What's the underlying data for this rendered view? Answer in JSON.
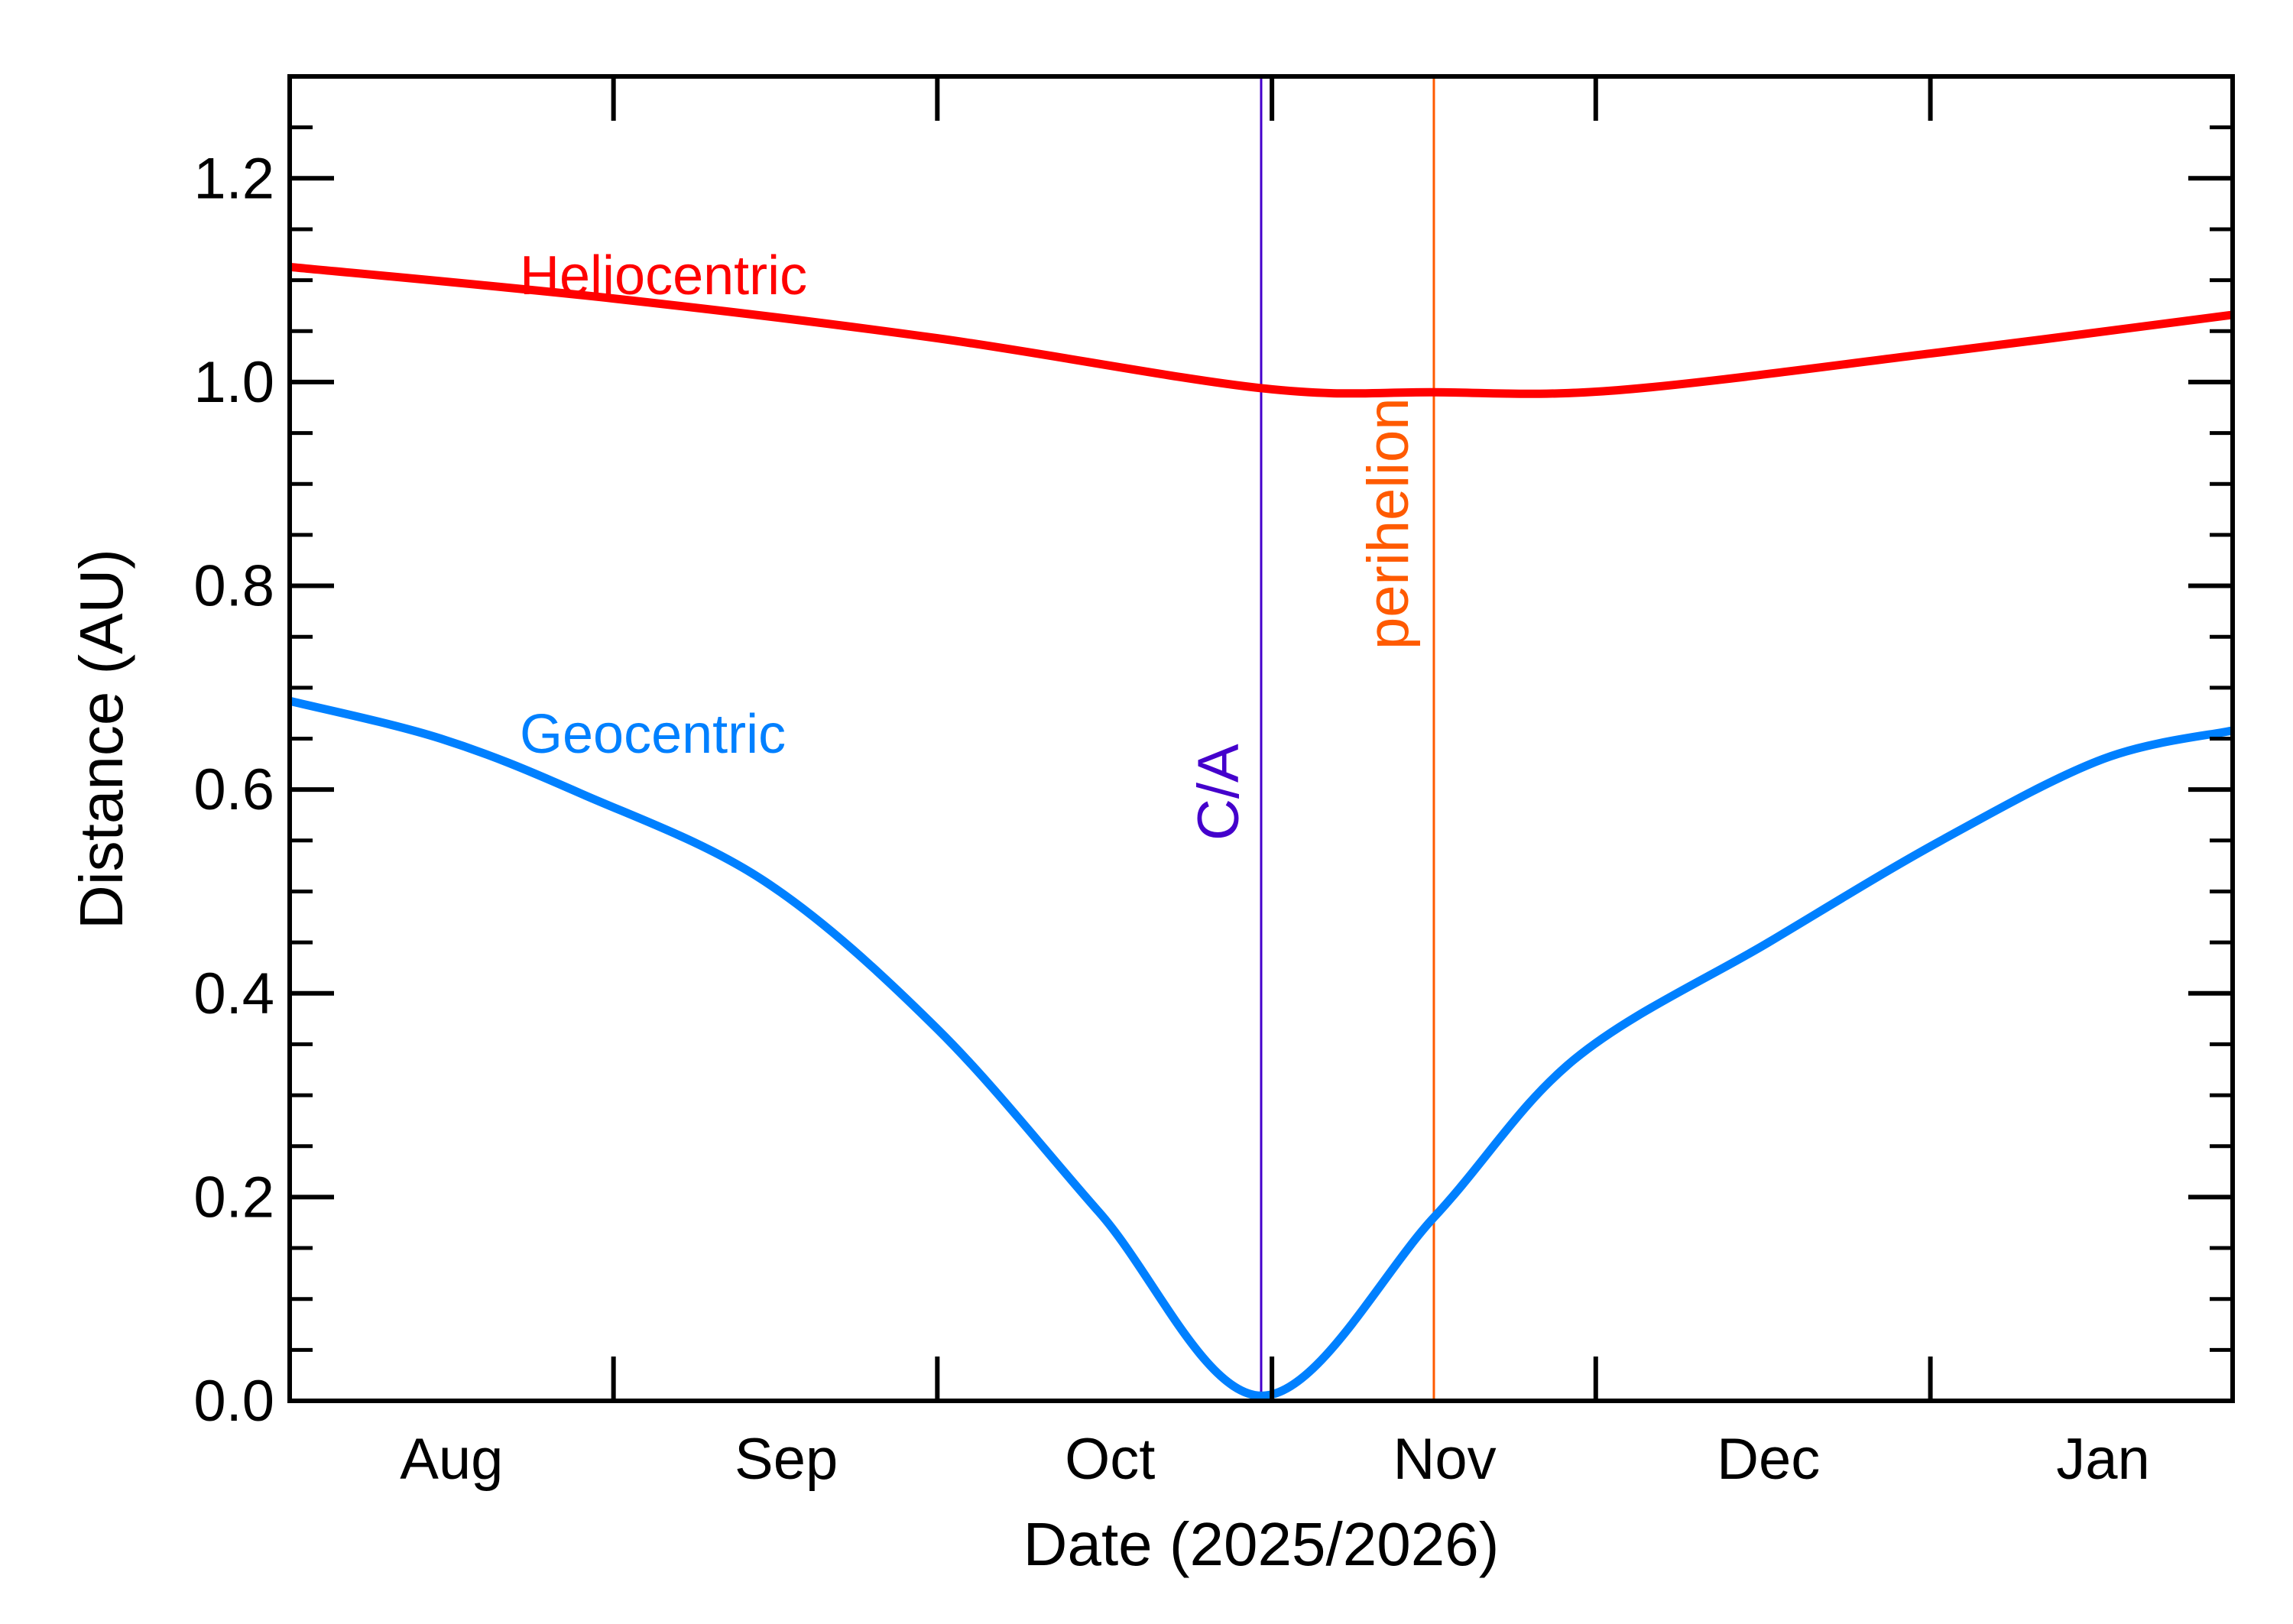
{
  "chart_data": {
    "type": "line",
    "title": "",
    "xlabel": "Date (2025/2026)",
    "ylabel": "Distance (AU)",
    "xlim": [
      "2025-07-17",
      "2026-01-13"
    ],
    "ylim": [
      0,
      1.3
    ],
    "grid": false,
    "x_tick_labels": [
      {
        "label": "Aug",
        "date": "2025-08-01"
      },
      {
        "label": "Sep",
        "date": "2025-09-01"
      },
      {
        "label": "Oct",
        "date": "2025-10-01"
      },
      {
        "label": "Nov",
        "date": "2025-11-01"
      },
      {
        "label": "Dec",
        "date": "2025-12-01"
      },
      {
        "label": "Jan",
        "date": "2026-01-01"
      }
    ],
    "x_major_ticks": [
      "2025-08-16",
      "2025-09-15",
      "2025-10-16",
      "2025-11-15",
      "2025-12-16"
    ],
    "y_ticks": [
      0.0,
      0.2,
      0.4,
      0.6,
      0.8,
      1.0,
      1.2
    ],
    "y_tick_labels": [
      "0.0",
      "0.2",
      "0.4",
      "0.6",
      "0.8",
      "1.0",
      "1.2"
    ],
    "y_minor_step": 0.05,
    "series": [
      {
        "name": "Heliocentric",
        "color": "#ff0000",
        "x": [
          "2025-07-17",
          "2025-08-16",
          "2025-09-15",
          "2025-10-15",
          "2025-10-31",
          "2025-11-17",
          "2025-12-16",
          "2026-01-13"
        ],
        "y": [
          1.113,
          1.082,
          1.043,
          0.994,
          0.99,
          0.992,
          1.028,
          1.066
        ]
      },
      {
        "name": "Geocentric",
        "color": "#0080ff",
        "x": [
          "2025-07-17",
          "2025-07-31",
          "2025-08-13",
          "2025-08-30",
          "2025-09-15",
          "2025-09-30",
          "2025-10-15",
          "2025-10-31",
          "2025-11-13",
          "2025-12-01",
          "2025-12-17",
          "2026-01-01",
          "2026-01-13"
        ],
        "y": [
          0.687,
          0.65,
          0.596,
          0.51,
          0.365,
          0.185,
          0.005,
          0.18,
          0.335,
          0.45,
          0.55,
          0.63,
          0.658
        ]
      }
    ],
    "annotations": [
      {
        "label": "C/A",
        "date": "2025-10-15",
        "color": "#4400cc"
      },
      {
        "label": "perihelion",
        "date": "2025-10-31",
        "color": "#ff5a00"
      }
    ]
  }
}
